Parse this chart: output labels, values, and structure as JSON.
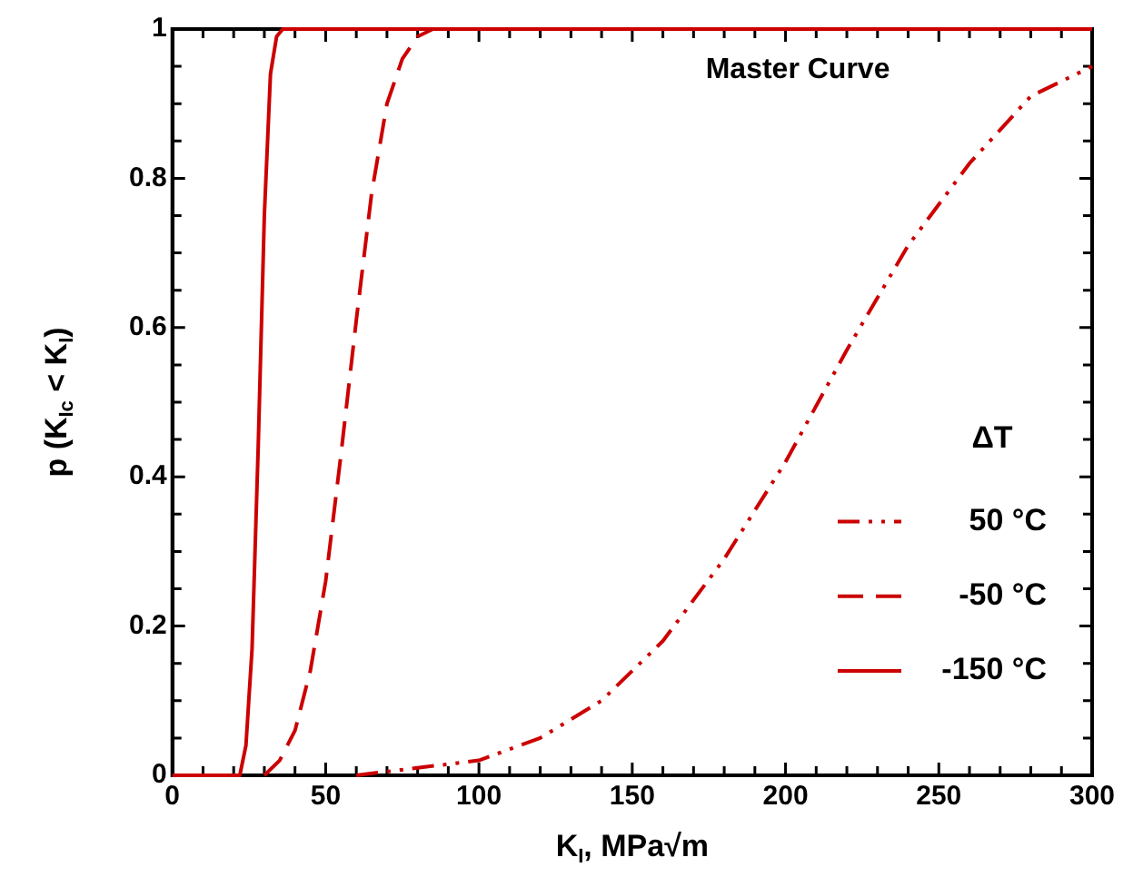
{
  "chart_data": {
    "type": "line",
    "title": "Master Curve",
    "xlabel": "K$_{I}$, MPa√m",
    "ylabel": "p (K$_{Ic}$ < K$_{I}$)",
    "legend_title": "ΔT",
    "legend": "bottom right",
    "grid": false,
    "marker": "none",
    "xlim": [
      0,
      300
    ],
    "ylim": [
      0,
      1
    ],
    "xticks": [
      0,
      {
        "value": 10,
        "label": null
      },
      {
        "value": 20,
        "label": null
      },
      {
        "value": 30,
        "label": null
      },
      {
        "value": 40,
        "label": null
      },
      50,
      {
        "value": 60,
        "label": null
      },
      {
        "value": 70,
        "label": null
      },
      {
        "value": 80,
        "label": null
      },
      {
        "value": 90,
        "label": null
      },
      100,
      {
        "value": 110,
        "label": null
      },
      {
        "value": 120,
        "label": null
      },
      {
        "value": 130,
        "label": null
      },
      {
        "value": 140,
        "label": null
      },
      150,
      {
        "value": 160,
        "label": null
      },
      {
        "value": 170,
        "label": null
      },
      {
        "value": 180,
        "label": null
      },
      {
        "value": 190,
        "label": null
      },
      200,
      {
        "value": 210,
        "label": null
      },
      {
        "value": 220,
        "label": null
      },
      {
        "value": 230,
        "label": null
      },
      {
        "value": 240,
        "label": null
      },
      250,
      {
        "value": 260,
        "label": null
      },
      {
        "value": 270,
        "label": null
      },
      {
        "value": 280,
        "label": null
      },
      {
        "value": 290,
        "label": null
      },
      300
    ],
    "yticks": [
      0,
      {
        "value": 0.05,
        "label": null
      },
      {
        "value": 0.1,
        "label": null
      },
      {
        "value": 0.15,
        "label": null
      },
      0.2,
      {
        "value": 0.25,
        "label": null
      },
      {
        "value": 0.3,
        "label": null
      },
      {
        "value": 0.35,
        "label": null
      },
      0.4,
      {
        "value": 0.45,
        "label": null
      },
      {
        "value": 0.5,
        "label": null
      },
      {
        "value": 0.55,
        "label": null
      },
      0.6,
      {
        "value": 0.65,
        "label": null
      },
      {
        "value": 0.7,
        "label": null
      },
      {
        "value": 0.75,
        "label": null
      },
      0.8,
      {
        "value": 0.85,
        "label": null
      },
      {
        "value": 0.9,
        "label": null
      },
      {
        "value": 0.95,
        "label": null
      },
      1
    ],
    "series": [
      {
        "name": "50 °C",
        "color": "#cc0000",
        "line_style": "dotted",
        "x": [
          60,
          80,
          100,
          120,
          140,
          160,
          180,
          200,
          220,
          240,
          260,
          280,
          300
        ],
        "values": [
          0,
          0.01,
          0.02,
          0.05,
          0.1,
          0.18,
          0.29,
          0.42,
          0.57,
          0.71,
          0.82,
          0.91,
          0.95
        ]
      },
      {
        "name": "-50 °C",
        "color": "#cc0000",
        "line_style": "dashed",
        "x": [
          30,
          35,
          40,
          45,
          50,
          55,
          60,
          65,
          70,
          75,
          80,
          85
        ],
        "values": [
          0,
          0.02,
          0.06,
          0.14,
          0.26,
          0.43,
          0.61,
          0.78,
          0.9,
          0.96,
          0.99,
          1
        ]
      },
      {
        "name": "-150 °C",
        "color": "#cc0000",
        "line_style": "solid",
        "x": [
          0,
          20,
          22,
          24,
          26,
          28,
          30,
          32,
          34,
          36,
          38,
          300
        ],
        "values": [
          0,
          0,
          0,
          0.04,
          0.17,
          0.44,
          0.75,
          0.94,
          0.99,
          1,
          1,
          1
        ]
      }
    ]
  }
}
